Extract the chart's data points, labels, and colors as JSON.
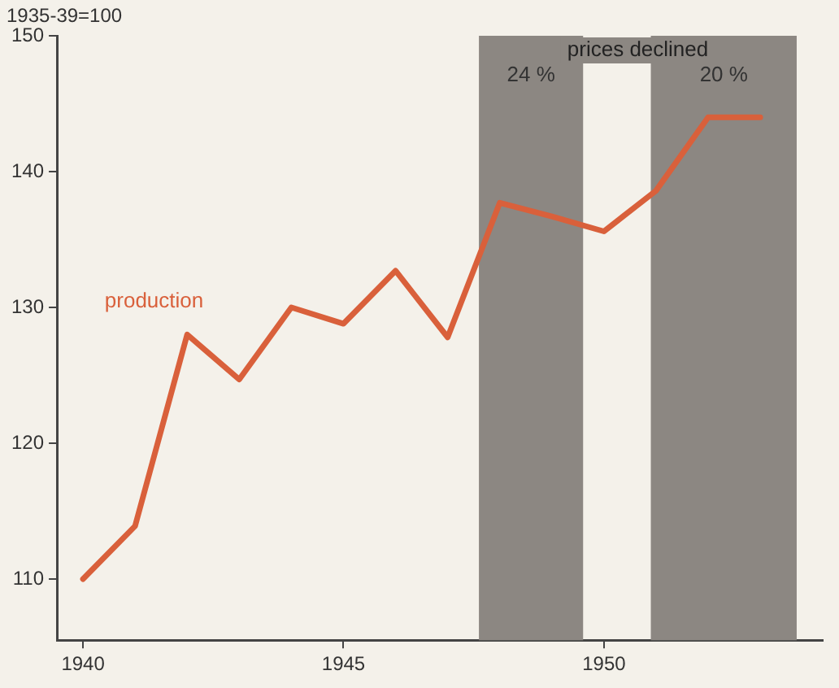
{
  "chart_data": {
    "type": "line",
    "ylabel": "1935-39=100",
    "x": [
      1940,
      1941,
      1942,
      1943,
      1944,
      1945,
      1946,
      1947,
      1948,
      1949,
      1950,
      1951,
      1952,
      1953
    ],
    "series": [
      {
        "name": "production",
        "color": "#d9603b",
        "values": [
          110,
          113.9,
          128,
          124.7,
          130,
          128.8,
          132.7,
          127.8,
          137.7,
          136.7,
          135.6,
          138.6,
          144,
          144
        ]
      }
    ],
    "xlim": [
      1939.5,
      1954.2
    ],
    "xticks": [
      1940,
      1945,
      1950
    ],
    "ylim": [
      105.5,
      150
    ],
    "yticks": [
      110,
      120,
      130,
      140,
      150
    ],
    "bands": [
      {
        "axis": "x",
        "from": 1947.6,
        "to": 1949.6,
        "label": "24 %",
        "color": "#8c8782"
      },
      {
        "axis": "x",
        "from": 1950.9,
        "to": 1953.7,
        "label": "20 %",
        "color": "#8c8782"
      }
    ],
    "annotations": [
      "prices declined"
    ],
    "grid": false,
    "legend": false,
    "marker": "none",
    "line_style": "solid"
  }
}
